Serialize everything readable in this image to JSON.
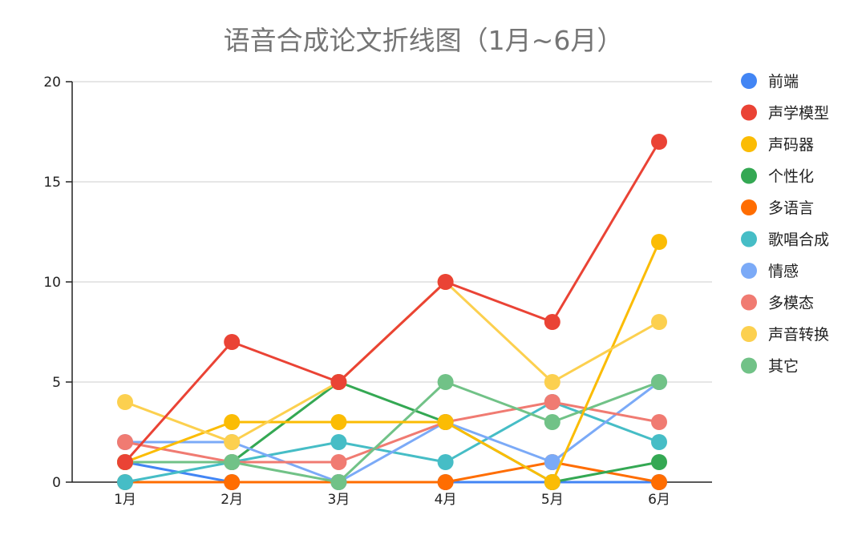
{
  "chart_data": {
    "type": "line",
    "title": "语音合成论文折线图（1月~6月）",
    "xlabel": "",
    "ylabel": "",
    "categories": [
      "1月",
      "2月",
      "3月",
      "4月",
      "5月",
      "6月"
    ],
    "ylim": [
      0,
      20
    ],
    "yticks": [
      0,
      5,
      10,
      15,
      20
    ],
    "grid": true,
    "legend_position": "right",
    "series": [
      {
        "name": "前端",
        "color": "#4285F4",
        "values": [
          1,
          0,
          0,
          0,
          0,
          0
        ]
      },
      {
        "name": "多语言",
        "color": "#FF6D01",
        "values": [
          0,
          0,
          0,
          0,
          1,
          0
        ]
      },
      {
        "name": "个性化",
        "color": "#34A853",
        "values": [
          1,
          1,
          5,
          3,
          0,
          1
        ]
      },
      {
        "name": "歌唱合成",
        "color": "#46BDC6",
        "values": [
          0,
          1,
          2,
          1,
          4,
          2
        ]
      },
      {
        "name": "情感",
        "color": "#7BAAF7",
        "values": [
          2,
          2,
          0,
          3,
          1,
          5
        ]
      },
      {
        "name": "多模态",
        "color": "#F07B72",
        "values": [
          2,
          1,
          1,
          3,
          4,
          3
        ]
      },
      {
        "name": "其它",
        "color": "#71C287",
        "values": [
          1,
          1,
          0,
          5,
          3,
          5
        ]
      },
      {
        "name": "声码器",
        "color": "#FBBC04",
        "values": [
          1,
          3,
          3,
          3,
          0,
          12
        ]
      },
      {
        "name": "声音转换",
        "color": "#FCD04F",
        "values": [
          4,
          2,
          5,
          10,
          5,
          8
        ]
      },
      {
        "name": "声学模型",
        "color": "#EA4335",
        "values": [
          1,
          7,
          5,
          10,
          8,
          17
        ]
      }
    ],
    "legend_order": [
      "前端",
      "声学模型",
      "声码器",
      "个性化",
      "多语言",
      "歌唱合成",
      "情感",
      "多模态",
      "声音转换",
      "其它"
    ]
  }
}
